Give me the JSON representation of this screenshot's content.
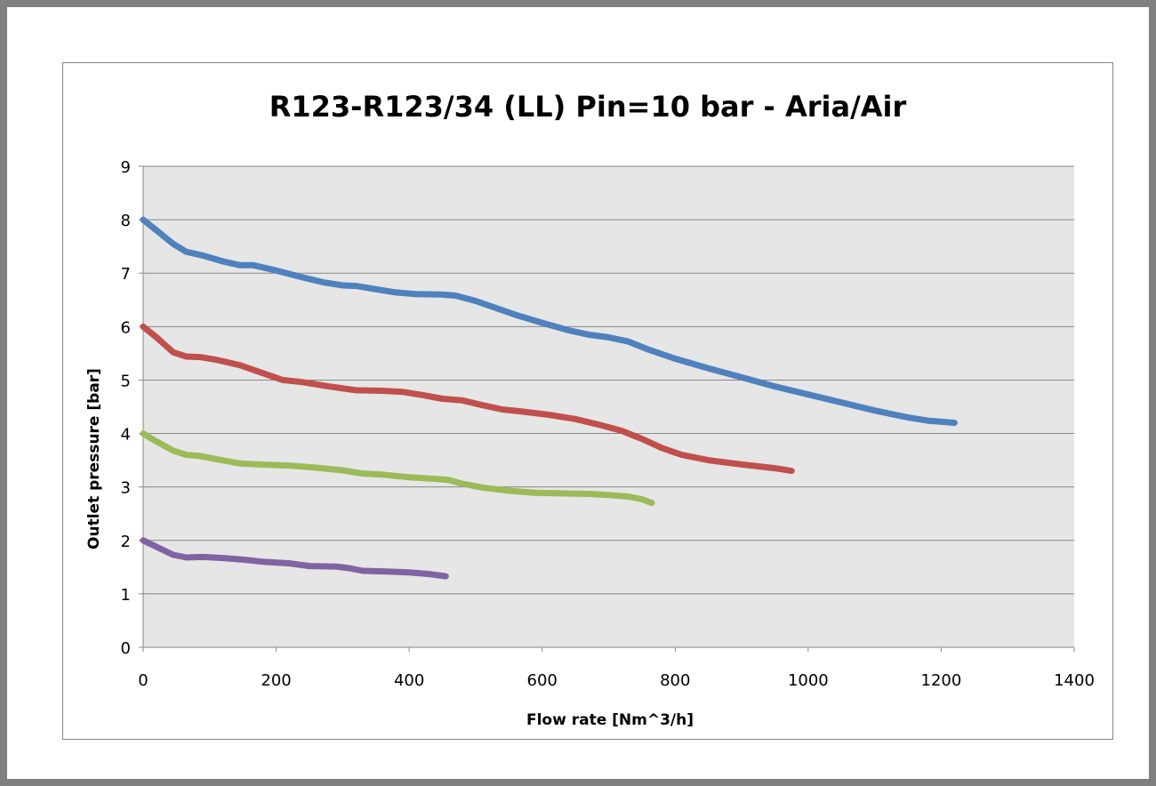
{
  "chart_data": {
    "type": "line",
    "title": "R123-R123/34 (LL) Pin=10 bar - Aria/Air",
    "xlabel": "Flow rate [Nm^3/h]",
    "ylabel": "Outlet pressure [bar]",
    "xlim": [
      0,
      1400
    ],
    "ylim": [
      0,
      9
    ],
    "x_ticks": [
      "0",
      "200",
      "400",
      "600",
      "800",
      "1000",
      "1200",
      "1400"
    ],
    "y_ticks": [
      "0",
      "1",
      "2",
      "3",
      "4",
      "5",
      "6",
      "7",
      "8",
      "9"
    ],
    "grid": "horizontal",
    "legend": "none",
    "plot_background": "#e6e6e6",
    "series": [
      {
        "color": "#4f81bd",
        "points": [
          [
            0,
            8.0
          ],
          [
            20,
            7.8
          ],
          [
            45,
            7.55
          ],
          [
            65,
            7.4
          ],
          [
            90,
            7.33
          ],
          [
            120,
            7.22
          ],
          [
            145,
            7.15
          ],
          [
            165,
            7.15
          ],
          [
            200,
            7.05
          ],
          [
            240,
            6.92
          ],
          [
            270,
            6.83
          ],
          [
            300,
            6.77
          ],
          [
            320,
            6.76
          ],
          [
            350,
            6.7
          ],
          [
            380,
            6.64
          ],
          [
            410,
            6.61
          ],
          [
            450,
            6.6
          ],
          [
            470,
            6.58
          ],
          [
            500,
            6.48
          ],
          [
            530,
            6.35
          ],
          [
            560,
            6.22
          ],
          [
            600,
            6.07
          ],
          [
            640,
            5.93
          ],
          [
            670,
            5.85
          ],
          [
            700,
            5.8
          ],
          [
            730,
            5.72
          ],
          [
            760,
            5.57
          ],
          [
            800,
            5.4
          ],
          [
            850,
            5.22
          ],
          [
            900,
            5.05
          ],
          [
            950,
            4.88
          ],
          [
            1000,
            4.73
          ],
          [
            1050,
            4.58
          ],
          [
            1100,
            4.43
          ],
          [
            1150,
            4.3
          ],
          [
            1180,
            4.24
          ],
          [
            1220,
            4.2
          ]
        ]
      },
      {
        "color": "#c0504d",
        "points": [
          [
            0,
            6.0
          ],
          [
            20,
            5.8
          ],
          [
            45,
            5.52
          ],
          [
            65,
            5.44
          ],
          [
            85,
            5.43
          ],
          [
            110,
            5.38
          ],
          [
            145,
            5.28
          ],
          [
            175,
            5.15
          ],
          [
            210,
            5.0
          ],
          [
            240,
            4.96
          ],
          [
            280,
            4.88
          ],
          [
            320,
            4.81
          ],
          [
            360,
            4.8
          ],
          [
            390,
            4.78
          ],
          [
            420,
            4.72
          ],
          [
            450,
            4.65
          ],
          [
            480,
            4.62
          ],
          [
            510,
            4.53
          ],
          [
            540,
            4.45
          ],
          [
            570,
            4.41
          ],
          [
            610,
            4.35
          ],
          [
            650,
            4.27
          ],
          [
            690,
            4.15
          ],
          [
            720,
            4.05
          ],
          [
            750,
            3.9
          ],
          [
            780,
            3.73
          ],
          [
            810,
            3.6
          ],
          [
            850,
            3.5
          ],
          [
            900,
            3.42
          ],
          [
            950,
            3.35
          ],
          [
            975,
            3.3
          ]
        ]
      },
      {
        "color": "#9bbb59",
        "points": [
          [
            0,
            4.0
          ],
          [
            20,
            3.85
          ],
          [
            45,
            3.68
          ],
          [
            65,
            3.6
          ],
          [
            85,
            3.58
          ],
          [
            110,
            3.52
          ],
          [
            145,
            3.44
          ],
          [
            175,
            3.42
          ],
          [
            220,
            3.4
          ],
          [
            260,
            3.36
          ],
          [
            300,
            3.31
          ],
          [
            330,
            3.25
          ],
          [
            360,
            3.23
          ],
          [
            400,
            3.18
          ],
          [
            440,
            3.15
          ],
          [
            460,
            3.13
          ],
          [
            480,
            3.06
          ],
          [
            510,
            2.99
          ],
          [
            550,
            2.93
          ],
          [
            590,
            2.89
          ],
          [
            630,
            2.88
          ],
          [
            670,
            2.87
          ],
          [
            700,
            2.85
          ],
          [
            730,
            2.82
          ],
          [
            750,
            2.77
          ],
          [
            765,
            2.7
          ]
        ]
      },
      {
        "color": "#8064a2",
        "points": [
          [
            0,
            2.0
          ],
          [
            20,
            1.88
          ],
          [
            45,
            1.73
          ],
          [
            65,
            1.68
          ],
          [
            90,
            1.69
          ],
          [
            120,
            1.67
          ],
          [
            150,
            1.64
          ],
          [
            180,
            1.6
          ],
          [
            220,
            1.57
          ],
          [
            250,
            1.52
          ],
          [
            290,
            1.51
          ],
          [
            310,
            1.48
          ],
          [
            330,
            1.43
          ],
          [
            360,
            1.42
          ],
          [
            400,
            1.4
          ],
          [
            430,
            1.37
          ],
          [
            455,
            1.33
          ]
        ]
      }
    ]
  }
}
